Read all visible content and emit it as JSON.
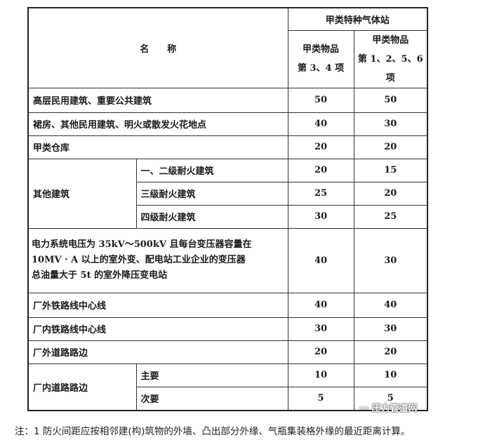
{
  "table": {
    "header": {
      "name": "名　　称",
      "group": "甲类特种气体站",
      "col_a": [
        "甲类物品",
        "第 3、4 项"
      ],
      "col_b": [
        "甲类物品",
        "第 1、2、5、6 项"
      ]
    },
    "rows": [
      {
        "name": "高层民用建筑、重要公共建筑",
        "a": "50",
        "b": "50"
      },
      {
        "name": "裙房、其他民用建筑、明火或散发火花地点",
        "a": "40",
        "b": "30"
      },
      {
        "name": "甲类仓库",
        "a": "20",
        "b": "20"
      }
    ],
    "other_buildings": {
      "name": "其他建筑",
      "sub": [
        {
          "name": "一、二级耐火建筑",
          "a": "20",
          "b": "15"
        },
        {
          "name": "三级耐火建筑",
          "a": "25",
          "b": "20"
        },
        {
          "name": "四级耐火建筑",
          "a": "30",
          "b": "25"
        }
      ]
    },
    "power": {
      "lines": [
        "电力系统电压为 35kV～500kV 且每台变压器容量在",
        "10MV · A 以上的室外变、配电站工业企业的变压器",
        "总油量大于 5t 的室外降压变电站"
      ],
      "a": "40",
      "b": "30"
    },
    "rows2": [
      {
        "name": "厂外铁路线中心线",
        "a": "40",
        "b": "40"
      },
      {
        "name": "厂内铁路线中心线",
        "a": "30",
        "b": "30"
      },
      {
        "name": "厂外道路路边",
        "a": "20",
        "b": "20"
      }
    ],
    "inner_road": {
      "name": "厂内道路路边",
      "sub": [
        {
          "name": "主要",
          "a": "10",
          "b": "10"
        },
        {
          "name": "次要",
          "a": "5",
          "b": "5"
        }
      ]
    }
  },
  "watermark": "压力管道网",
  "note": "注：1 防火间距应按相邻建(构)筑物的外墙、凸出部分外缘、气瓶集装格外缘的最近距离计算。"
}
